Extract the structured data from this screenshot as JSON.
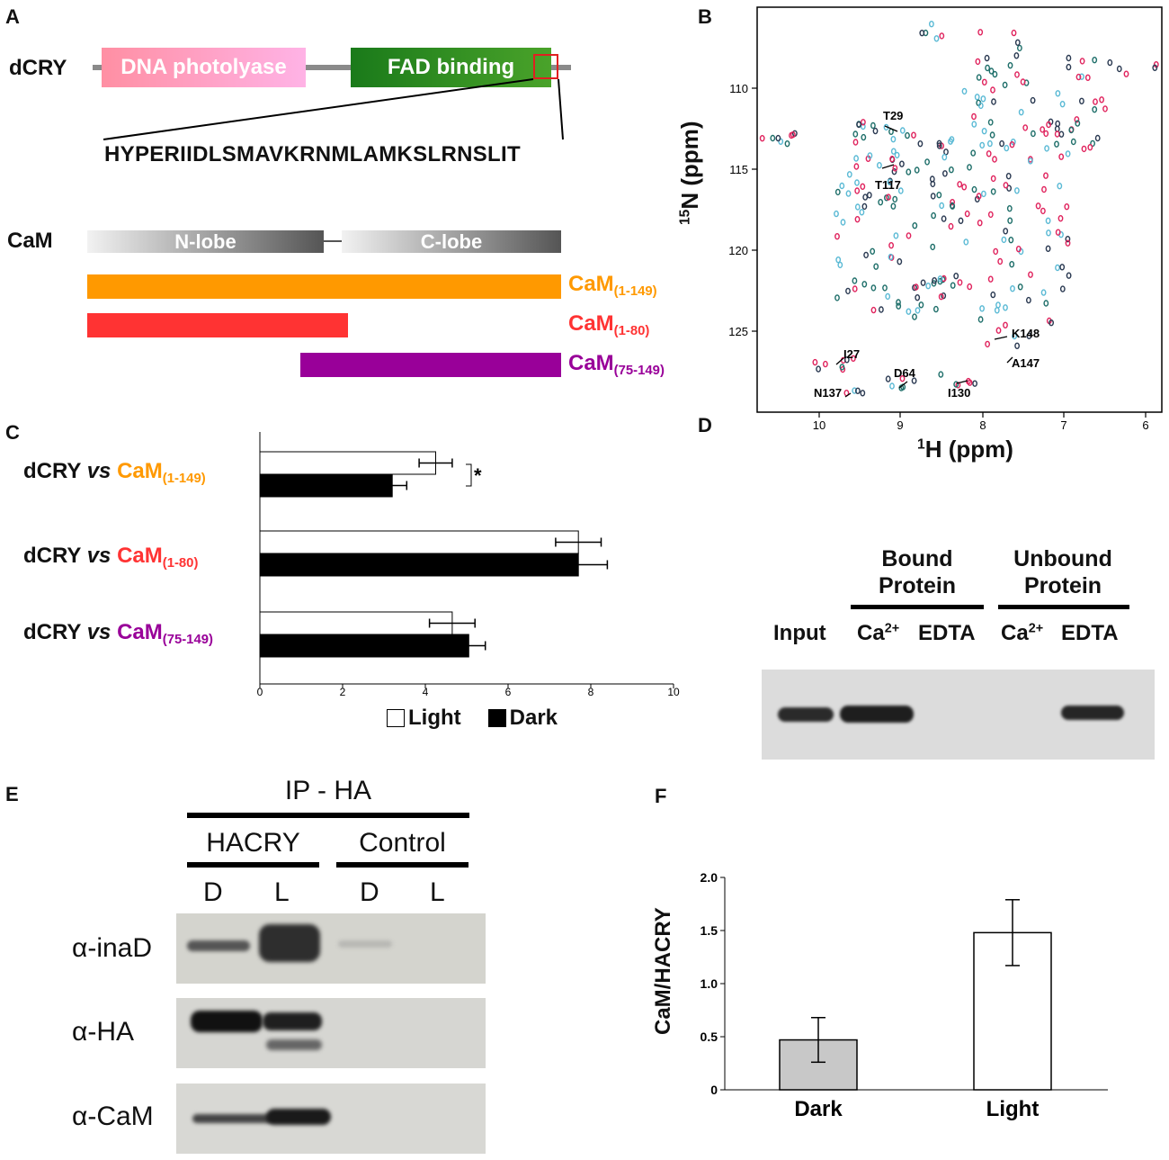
{
  "panels": {
    "A": "A",
    "B": "B",
    "C": "C",
    "D": "D",
    "E": "E",
    "F": "F"
  },
  "panelA": {
    "dcry_label": "dCRY",
    "domain1": "DNA photolyase",
    "domain2": "FAD binding",
    "sequence": "HYPERIIDLSMAVKRNMLAMKSLRNSLIT",
    "cam_label": "CaM",
    "nlobe": "N-lobe",
    "clobe": "C-lobe",
    "constructs": [
      {
        "name": "CaM",
        "range": "(1-149)",
        "color": "#ff9900"
      },
      {
        "name": "CaM",
        "range": "(1-80)",
        "color": "#ff3333"
      },
      {
        "name": "CaM",
        "range": "(75-149)",
        "color": "#990099"
      }
    ]
  },
  "panelB": {
    "ylabel": "15N (ppm)",
    "ylabel_sup": "15",
    "ylabel_main": "N (ppm)",
    "xlabel_sup": "1",
    "xlabel_main": "H (ppm)",
    "x_ticks": [
      "10",
      "9",
      "8",
      "7",
      "6"
    ],
    "y_ticks": [
      "110",
      "115",
      "120",
      "125"
    ],
    "annotations": [
      "T29",
      "T117",
      "K148",
      "I27",
      "A147",
      "D64",
      "N137",
      "I130"
    ],
    "colors": {
      "red": "#e0245e",
      "cyan": "#5bbad5",
      "teal": "#1f6f6a",
      "dark": "#2b3a52"
    }
  },
  "chart_data": {
    "type": "bar",
    "orientation": "horizontal",
    "categories": [
      "dCRY vs CaM(1-149)",
      "dCRY vs CaM(1-80)",
      "dCRY vs CaM(75-149)"
    ],
    "category_parts": [
      {
        "prefix": "dCRY",
        "vs": "vs",
        "cam": "CaM",
        "range": "(1-149)",
        "color": "#ff9900"
      },
      {
        "prefix": "dCRY",
        "vs": "vs",
        "cam": "CaM",
        "range": "(1-80)",
        "color": "#ff3333"
      },
      {
        "prefix": "dCRY",
        "vs": "vs",
        "cam": "CaM",
        "range": "(75-149)",
        "color": "#990099"
      }
    ],
    "series": [
      {
        "name": "Light",
        "values": [
          4.25,
          7.7,
          4.65
        ],
        "errors": [
          0.4,
          0.55,
          0.55
        ],
        "fill": "#ffffff"
      },
      {
        "name": "Dark",
        "values": [
          3.2,
          7.7,
          5.05
        ],
        "errors": [
          0.35,
          0.7,
          0.4
        ],
        "fill": "#000000"
      }
    ],
    "xlim": [
      0,
      10
    ],
    "x_ticks": [
      "0",
      "2",
      "4",
      "6",
      "8",
      "10"
    ],
    "significance": "*",
    "legend": [
      "Light",
      "Dark"
    ]
  },
  "panelD": {
    "bound": "Bound Protein",
    "bound_line1": "Bound",
    "bound_line2": "Protein",
    "unbound_line1": "Unbound",
    "unbound_line2": "Protein",
    "lanes": [
      "Input",
      "Ca",
      "EDTA",
      "Ca",
      "EDTA"
    ],
    "ca_sup": "2+"
  },
  "panelE": {
    "ip": "IP - HA",
    "group1": "HACRY",
    "group2": "Control",
    "lanes": [
      "D",
      "L",
      "D",
      "L"
    ],
    "rows": [
      "α-inaD",
      "α-HA",
      "α-CaM"
    ]
  },
  "panelF": {
    "chart_data": {
      "type": "bar",
      "categories": [
        "Dark",
        "Light"
      ],
      "values": [
        0.47,
        1.48
      ],
      "errors": [
        0.21,
        0.31
      ],
      "fills": [
        "#c8c8c8",
        "#ffffff"
      ],
      "ylabel": "CaM/HACRY",
      "ylim": [
        0,
        2.0
      ],
      "y_ticks": [
        "0",
        "0.5",
        "1.0",
        "1.5",
        "2.0"
      ]
    }
  }
}
